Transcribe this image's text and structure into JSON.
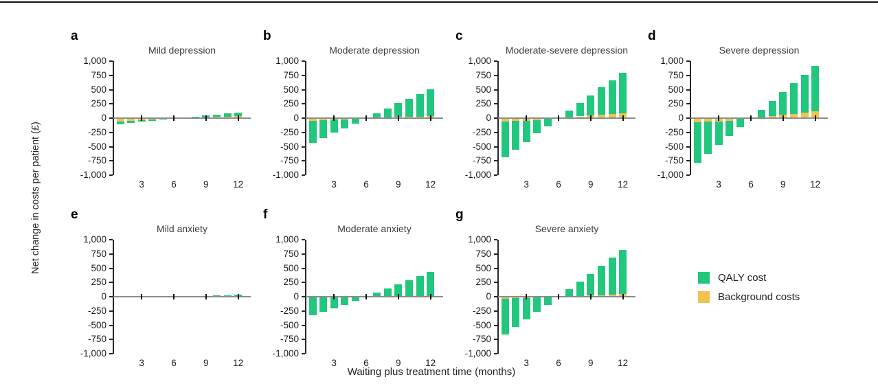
{
  "figure": {
    "ylabel": "Net change in costs per patient (£)",
    "xlabel": "Waiting plus treatment time (months)"
  },
  "colors": {
    "qaly_green": "#22c77e",
    "background_yellow": "#f1c24f",
    "zero_line_gray": "#8c8c8c",
    "axis_black": "#262626"
  },
  "legend": {
    "items": [
      {
        "label": "QALY cost",
        "series": "qaly",
        "color": "#22c77e"
      },
      {
        "label": "Background costs",
        "series": "background",
        "color": "#f1c24f"
      }
    ]
  },
  "axes": {
    "y_tick_labels": [
      "1,000",
      "750",
      "500",
      "250",
      "0",
      "-250",
      "-500",
      "-750",
      "-1,000"
    ],
    "y_tick_values": [
      1000,
      750,
      500,
      250,
      0,
      -250,
      -500,
      -750,
      -1000
    ],
    "x_tick_labels": [
      "3",
      "6",
      "9",
      "12"
    ],
    "x_tick_values": [
      3,
      6,
      9,
      12
    ],
    "ylim": [
      -1000,
      1000
    ],
    "months": [
      1,
      2,
      3,
      4,
      5,
      6,
      7,
      8,
      9,
      10,
      11,
      12
    ]
  },
  "chart_data": [
    {
      "id": "a",
      "title": "Mild depression",
      "type": "bar",
      "stacked": true,
      "stack_order": [
        "background",
        "qaly"
      ],
      "series": [
        {
          "name": "Background costs",
          "key": "background",
          "values": [
            -60,
            -45,
            -35,
            -25,
            -15,
            0,
            0,
            10,
            15,
            20,
            25,
            35
          ]
        },
        {
          "name": "QALY cost",
          "key": "qaly",
          "values": [
            -50,
            -40,
            -30,
            -20,
            -15,
            -10,
            15,
            20,
            30,
            40,
            55,
            65
          ]
        }
      ]
    },
    {
      "id": "b",
      "title": "Moderate depression",
      "type": "bar",
      "stacked": true,
      "stack_order": [
        "background",
        "qaly"
      ],
      "series": [
        {
          "name": "Background costs",
          "key": "background",
          "values": [
            -45,
            -40,
            -30,
            -20,
            -10,
            0,
            0,
            10,
            20,
            25,
            30,
            40
          ]
        },
        {
          "name": "QALY cost",
          "key": "qaly",
          "values": [
            -385,
            -310,
            -225,
            -155,
            -85,
            0,
            80,
            155,
            240,
            315,
            395,
            470
          ]
        }
      ]
    },
    {
      "id": "c",
      "title": "Moderate-severe depression",
      "type": "bar",
      "stacked": true,
      "stack_order": [
        "background",
        "qaly"
      ],
      "series": [
        {
          "name": "Background costs",
          "key": "background",
          "values": [
            -60,
            -50,
            -45,
            -35,
            -10,
            0,
            0,
            30,
            45,
            60,
            75,
            90
          ]
        },
        {
          "name": "QALY cost",
          "key": "qaly",
          "values": [
            -630,
            -510,
            -375,
            -235,
            -130,
            0,
            130,
            240,
            355,
            480,
            585,
            710
          ]
        }
      ]
    },
    {
      "id": "d",
      "title": "Severe depression",
      "type": "bar",
      "stacked": true,
      "stack_order": [
        "background",
        "qaly"
      ],
      "series": [
        {
          "name": "Background costs",
          "key": "background",
          "values": [
            -70,
            -60,
            -55,
            -45,
            -10,
            0,
            0,
            35,
            55,
            75,
            95,
            115
          ]
        },
        {
          "name": "QALY cost",
          "key": "qaly",
          "values": [
            -710,
            -570,
            -415,
            -265,
            -150,
            0,
            150,
            270,
            400,
            535,
            665,
            795
          ]
        }
      ]
    },
    {
      "id": "e",
      "title": "Mild anxiety",
      "type": "bar",
      "stacked": true,
      "stack_order": [
        "background",
        "qaly"
      ],
      "series": [
        {
          "name": "Background costs",
          "key": "background",
          "values": [
            0,
            0,
            0,
            0,
            0,
            0,
            0,
            0,
            0,
            0,
            0,
            0
          ]
        },
        {
          "name": "QALY cost",
          "key": "qaly",
          "values": [
            -10,
            -10,
            -10,
            -8,
            -8,
            -5,
            5,
            10,
            18,
            22,
            28,
            38
          ]
        }
      ]
    },
    {
      "id": "f",
      "title": "Moderate anxiety",
      "type": "bar",
      "stacked": true,
      "stack_order": [
        "background",
        "qaly"
      ],
      "series": [
        {
          "name": "Background costs",
          "key": "background",
          "values": [
            0,
            0,
            0,
            0,
            0,
            0,
            0,
            0,
            0,
            0,
            0,
            0
          ]
        },
        {
          "name": "QALY cost",
          "key": "qaly",
          "values": [
            -330,
            -260,
            -200,
            -140,
            -70,
            0,
            70,
            145,
            215,
            290,
            360,
            430
          ]
        }
      ]
    },
    {
      "id": "g",
      "title": "Severe anxiety",
      "type": "bar",
      "stacked": true,
      "stack_order": [
        "background",
        "qaly"
      ],
      "series": [
        {
          "name": "Background costs",
          "key": "background",
          "values": [
            -35,
            -30,
            -25,
            -15,
            0,
            0,
            0,
            12,
            20,
            25,
            35,
            45
          ]
        },
        {
          "name": "QALY cost",
          "key": "qaly",
          "values": [
            -625,
            -500,
            -375,
            -250,
            -140,
            0,
            130,
            258,
            380,
            520,
            650,
            780
          ]
        }
      ]
    }
  ]
}
